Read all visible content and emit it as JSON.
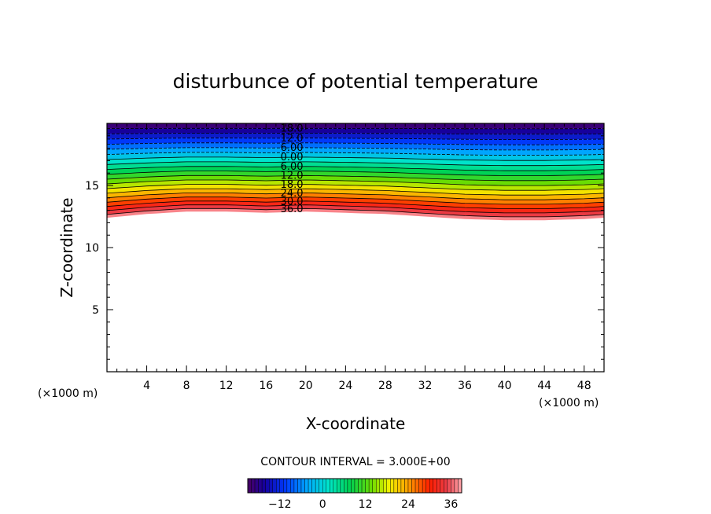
{
  "chart_data": {
    "type": "heatmap",
    "title": "disturbunce of potential temperature",
    "xlabel": "X-coordinate",
    "ylabel": "Z-coordinate",
    "x_unit": "(×1000 m)",
    "z_unit": "(×1000 m)",
    "xlim": [
      0,
      50
    ],
    "ylim": [
      0,
      20
    ],
    "x_ticks": [
      4,
      8,
      12,
      16,
      20,
      24,
      28,
      32,
      36,
      40,
      44,
      48
    ],
    "y_ticks": [
      5,
      10,
      15
    ],
    "contour_interval_text": "CONTOUR INTERVAL = 3.000E+00",
    "contour_interval": 3,
    "contour_labels": [
      "18.0",
      "12.0",
      "6.00",
      "0.00",
      "6.00",
      "12.0",
      "18.0",
      "24.0",
      "30.0",
      "36.0"
    ],
    "contour_label_levels": [
      -18,
      -12,
      -6,
      0,
      6,
      12,
      18,
      24,
      30,
      36
    ],
    "field_range": [
      -21,
      39
    ],
    "field_top_z": 20,
    "field_bottom_z_profile": {
      "x": [
        0,
        4,
        8,
        12,
        16,
        20,
        24,
        28,
        32,
        36,
        40,
        44,
        48,
        50
      ],
      "z": [
        12.4,
        12.7,
        12.9,
        12.9,
        12.8,
        12.9,
        12.8,
        12.7,
        12.5,
        12.3,
        12.2,
        12.2,
        12.3,
        12.4
      ]
    },
    "colorbar": {
      "min": -21,
      "max": 39,
      "tick_values": [
        -12,
        0,
        12,
        24,
        36
      ],
      "tick_labels": [
        "−12",
        "0",
        "12",
        "24",
        "36"
      ]
    },
    "grid": false,
    "legend": "colorbar-bottom"
  }
}
